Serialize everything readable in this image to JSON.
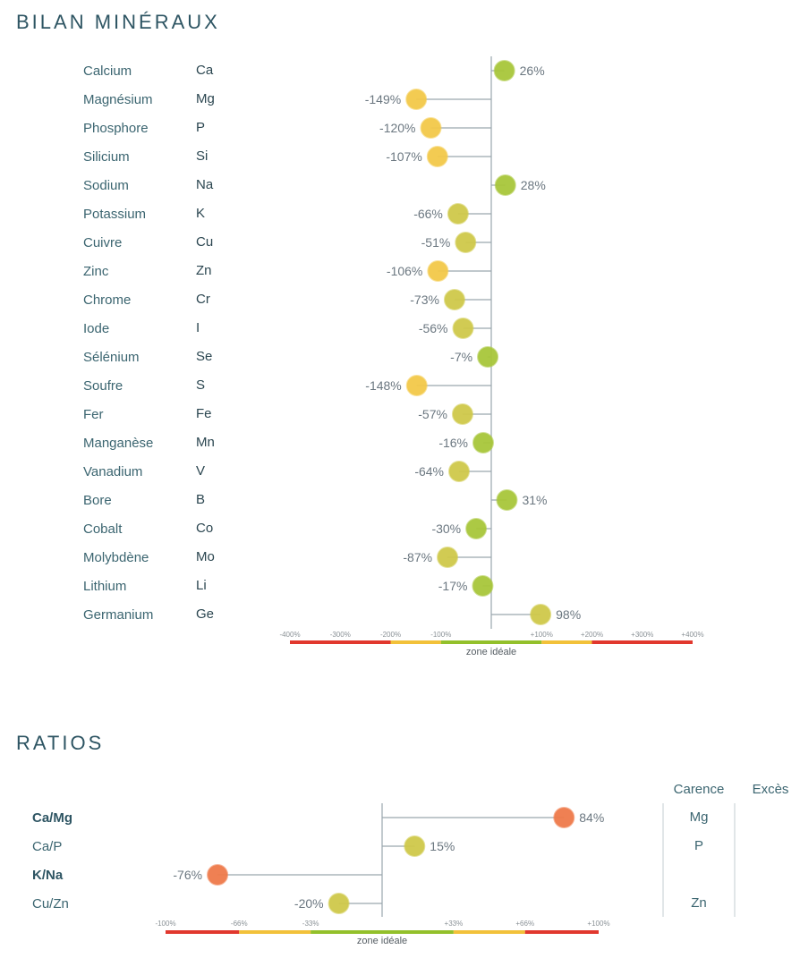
{
  "sections": {
    "minerals_title": "BILAN MINÉRAUX",
    "ratios_title": "RATIOS"
  },
  "colors": {
    "green": "#a8c73a",
    "yellow_green": "#cfc94a",
    "yellow": "#f3c949",
    "orange": "#ef7a4a",
    "red": "#e1382e",
    "axis": "#9aa7ae",
    "band_yellow": "#f2c13a",
    "band_green": "#93c02b"
  },
  "chart_data": [
    {
      "type": "lollipop",
      "title": "BILAN MINÉRAUX",
      "xlim": [
        -400,
        400
      ],
      "ticks": [
        "-400%",
        "-300%",
        "-200%",
        "-100%",
        "+100%",
        "+200%",
        "+300%",
        "+400%"
      ],
      "tick_values": [
        -400,
        -300,
        -200,
        -100,
        100,
        200,
        300,
        400
      ],
      "zone_label": "zone idéale",
      "bands": [
        {
          "from": -400,
          "to": -200,
          "color": "red"
        },
        {
          "from": -200,
          "to": -100,
          "color": "yellow"
        },
        {
          "from": -100,
          "to": 100,
          "color": "green"
        },
        {
          "from": 100,
          "to": 200,
          "color": "yellow"
        },
        {
          "from": 200,
          "to": 400,
          "color": "red"
        }
      ],
      "rows": [
        {
          "name": "Calcium",
          "symbol": "Ca",
          "value": 26,
          "label": "26%",
          "color": "green"
        },
        {
          "name": "Magnésium",
          "symbol": "Mg",
          "value": -149,
          "label": "-149%",
          "color": "yellow"
        },
        {
          "name": "Phosphore",
          "symbol": "P",
          "value": -120,
          "label": "-120%",
          "color": "yellow"
        },
        {
          "name": "Silicium",
          "symbol": "Si",
          "value": -107,
          "label": "-107%",
          "color": "yellow"
        },
        {
          "name": "Sodium",
          "symbol": "Na",
          "value": 28,
          "label": "28%",
          "color": "green"
        },
        {
          "name": "Potassium",
          "symbol": "K",
          "value": -66,
          "label": "-66%",
          "color": "yellow_green"
        },
        {
          "name": "Cuivre",
          "symbol": "Cu",
          "value": -51,
          "label": "-51%",
          "color": "yellow_green"
        },
        {
          "name": "Zinc",
          "symbol": "Zn",
          "value": -106,
          "label": "-106%",
          "color": "yellow"
        },
        {
          "name": "Chrome",
          "symbol": "Cr",
          "value": -73,
          "label": "-73%",
          "color": "yellow_green"
        },
        {
          "name": "Iode",
          "symbol": "I",
          "value": -56,
          "label": "-56%",
          "color": "yellow_green"
        },
        {
          "name": "Sélénium",
          "symbol": "Se",
          "value": -7,
          "label": "-7%",
          "color": "green"
        },
        {
          "name": "Soufre",
          "symbol": "S",
          "value": -148,
          "label": "-148%",
          "color": "yellow"
        },
        {
          "name": "Fer",
          "symbol": "Fe",
          "value": -57,
          "label": "-57%",
          "color": "yellow_green"
        },
        {
          "name": "Manganèse",
          "symbol": "Mn",
          "value": -16,
          "label": "-16%",
          "color": "green"
        },
        {
          "name": "Vanadium",
          "symbol": "V",
          "value": -64,
          "label": "-64%",
          "color": "yellow_green"
        },
        {
          "name": "Bore",
          "symbol": "B",
          "value": 31,
          "label": "31%",
          "color": "green"
        },
        {
          "name": "Cobalt",
          "symbol": "Co",
          "value": -30,
          "label": "-30%",
          "color": "green"
        },
        {
          "name": "Molybdène",
          "symbol": "Mo",
          "value": -87,
          "label": "-87%",
          "color": "yellow_green"
        },
        {
          "name": "Lithium",
          "symbol": "Li",
          "value": -17,
          "label": "-17%",
          "color": "green"
        },
        {
          "name": "Germanium",
          "symbol": "Ge",
          "value": 98,
          "label": "98%",
          "color": "yellow_green"
        }
      ]
    },
    {
      "type": "lollipop",
      "title": "RATIOS",
      "xlim": [
        -100,
        100
      ],
      "ticks": [
        "-100%",
        "-66%",
        "-33%",
        "+33%",
        "+66%",
        "+100%"
      ],
      "tick_values": [
        -100,
        -66,
        -33,
        33,
        66,
        100
      ],
      "zone_label": "zone idéale",
      "bands": [
        {
          "from": -100,
          "to": -66,
          "color": "red"
        },
        {
          "from": -66,
          "to": -33,
          "color": "yellow"
        },
        {
          "from": -33,
          "to": 33,
          "color": "green"
        },
        {
          "from": 33,
          "to": 66,
          "color": "yellow"
        },
        {
          "from": 66,
          "to": 100,
          "color": "red"
        }
      ],
      "columns": [
        "Carence",
        "Excès"
      ],
      "rows": [
        {
          "name": "Ca/Mg",
          "bold": true,
          "value": 84,
          "label": "84%",
          "color": "orange",
          "carence": "Mg",
          "exces": ""
        },
        {
          "name": "Ca/P",
          "bold": false,
          "value": 15,
          "label": "15%",
          "color": "yellow_green",
          "carence": "P",
          "exces": ""
        },
        {
          "name": "K/Na",
          "bold": true,
          "value": -76,
          "label": "-76%",
          "color": "orange",
          "carence": "",
          "exces": ""
        },
        {
          "name": "Cu/Zn",
          "bold": false,
          "value": -20,
          "label": "-20%",
          "color": "yellow_green",
          "carence": "Zn",
          "exces": ""
        }
      ]
    }
  ]
}
